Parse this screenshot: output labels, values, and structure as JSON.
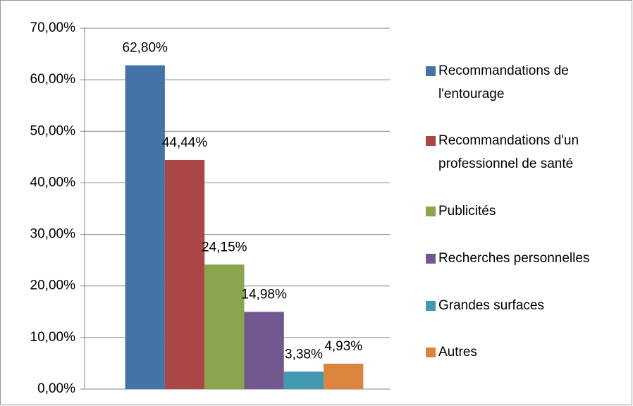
{
  "chart_data": {
    "type": "bar",
    "series": [
      {
        "name": "Recommandations de l'entourage",
        "color": "#4572a7",
        "values": [
          62.8
        ],
        "value_labels": [
          "62,80%"
        ]
      },
      {
        "name": "Recommandations d'un professionnel de santé",
        "color": "#aa4643",
        "values": [
          44.44
        ],
        "value_labels": [
          "44,44%"
        ]
      },
      {
        "name": "Publicités",
        "color": "#89a54e",
        "values": [
          24.15
        ],
        "value_labels": [
          "24,15%"
        ]
      },
      {
        "name": "Recherches personnelles",
        "color": "#71588f",
        "values": [
          14.98
        ],
        "value_labels": [
          "14,98%"
        ]
      },
      {
        "name": "Grandes surfaces",
        "color": "#4198af",
        "values": [
          3.38
        ],
        "value_labels": [
          "3,38%"
        ]
      },
      {
        "name": "Autres",
        "color": "#db843d",
        "values": [
          4.93
        ],
        "value_labels": [
          "4,93%"
        ]
      }
    ],
    "ylim": [
      0,
      70
    ],
    "yticks": [
      {
        "value": 0,
        "label": "0,00%"
      },
      {
        "value": 10,
        "label": "10,00%"
      },
      {
        "value": 20,
        "label": "20,00%"
      },
      {
        "value": 30,
        "label": "30,00%"
      },
      {
        "value": 40,
        "label": "40,00%"
      },
      {
        "value": 50,
        "label": "50,00%"
      },
      {
        "value": 60,
        "label": "60,00%"
      },
      {
        "value": 70,
        "label": "70,00%"
      }
    ],
    "grid": true,
    "legend": "right"
  }
}
